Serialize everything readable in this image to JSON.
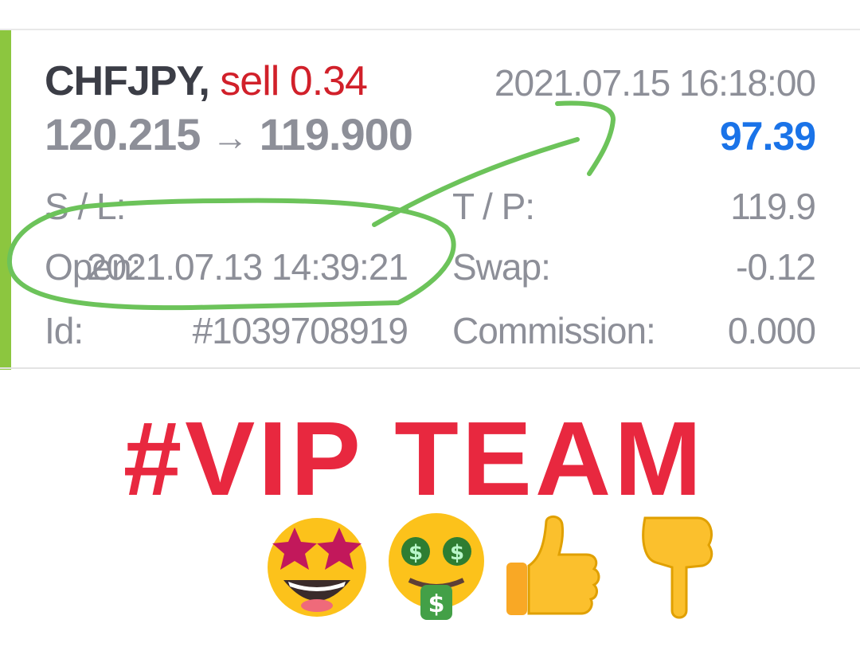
{
  "trade": {
    "symbol": "CHFJPY,",
    "side": "sell 0.34",
    "close_time": "2021.07.15 16:18:00",
    "price_open": "120.215",
    "arrow": "→",
    "price_close": "119.900",
    "profit": "97.39",
    "details": {
      "sl_label": "S / L:",
      "sl_value": "–",
      "tp_label": "T / P:",
      "tp_value": "119.9",
      "open_label": "Open:",
      "open_value": "2021.07.13 14:39:21",
      "swap_label": "Swap:",
      "swap_value": "-0.12",
      "id_label": "Id:",
      "id_value": "#1039708919",
      "commission_label": "Commission:",
      "commission_value": "0.000"
    }
  },
  "colors": {
    "accent": "#8cc63f",
    "sell": "#d1202a",
    "profit": "#1a73e8",
    "banner": "#e8283f",
    "annotation": "#6cc35a"
  },
  "banner": {
    "text": "#VIP TEAM"
  },
  "emojis": [
    "star-struck-icon",
    "money-mouth-icon",
    "thumbs-up-icon",
    "pointing-down-icon"
  ]
}
